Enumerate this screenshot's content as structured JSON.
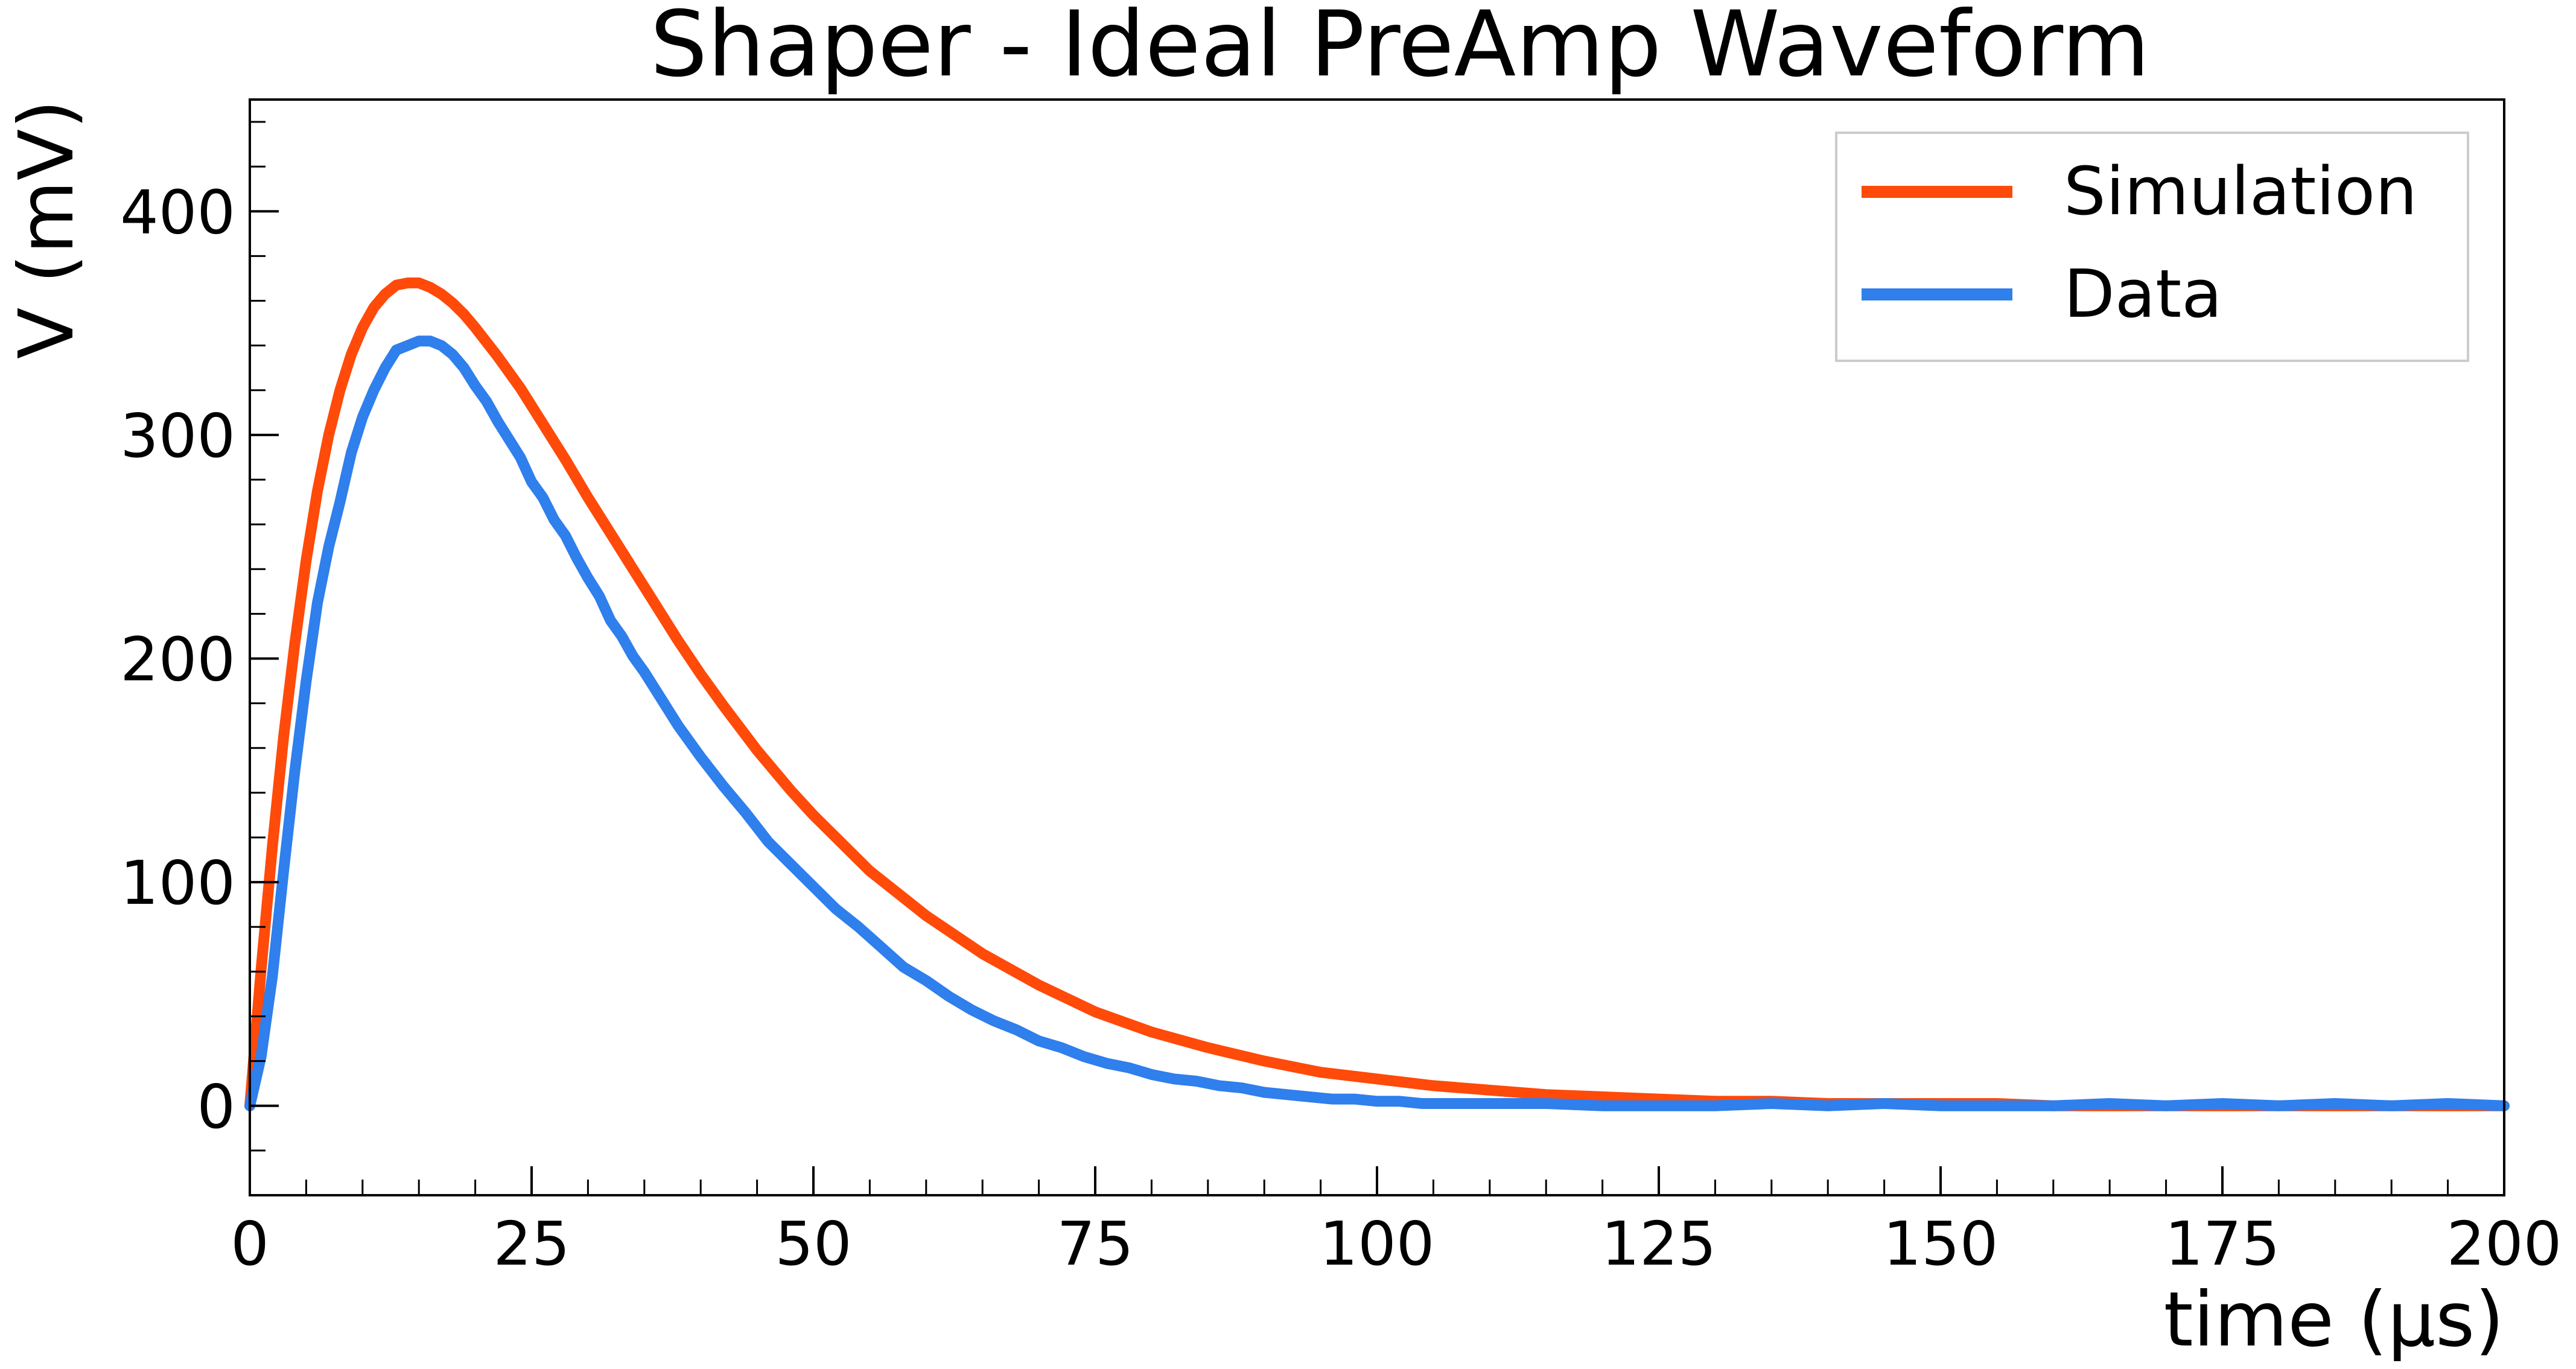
{
  "chart_data": {
    "type": "line",
    "title": "Shaper - Ideal PreAmp Waveform",
    "xlabel": "time (μs)",
    "ylabel": "V (mV)",
    "xlim": [
      0,
      200
    ],
    "ylim": [
      -40,
      450
    ],
    "xticks": [
      0,
      25,
      50,
      75,
      100,
      125,
      150,
      175,
      200
    ],
    "yticks": [
      0,
      100,
      200,
      300,
      400
    ],
    "grid": false,
    "legend_position": "top-right",
    "series": [
      {
        "name": "Simulation",
        "color": "#ff4a0a",
        "x": [
          0,
          1,
          2,
          3,
          4,
          5,
          6,
          7,
          8,
          9,
          10,
          11,
          12,
          13,
          14,
          15,
          16,
          17,
          18,
          19,
          20,
          22,
          24,
          26,
          28,
          30,
          32,
          34,
          36,
          38,
          40,
          42,
          45,
          48,
          50,
          55,
          60,
          65,
          70,
          75,
          80,
          85,
          90,
          95,
          100,
          105,
          110,
          115,
          120,
          125,
          130,
          135,
          140,
          145,
          150,
          155,
          160,
          165,
          170,
          175,
          180,
          185,
          190,
          195,
          200
        ],
        "y": [
          0,
          61,
          116,
          165,
          207,
          244,
          275,
          300,
          320,
          336,
          348,
          357,
          363,
          367,
          368,
          368,
          366,
          363,
          359,
          354,
          348,
          335,
          321,
          305,
          289,
          272,
          256,
          240,
          224,
          208,
          193,
          179,
          159,
          141,
          130,
          105,
          85,
          68,
          54,
          42,
          33,
          26,
          20,
          15,
          12,
          9,
          7,
          5,
          4,
          3,
          2,
          2,
          1,
          1,
          1,
          1,
          0,
          0,
          0,
          0,
          0,
          0,
          0,
          0,
          0
        ]
      },
      {
        "name": "Data",
        "color": "#2f7fec",
        "x": [
          0,
          1,
          2,
          3,
          4,
          5,
          6,
          7,
          8,
          9,
          10,
          11,
          12,
          13,
          14,
          15,
          16,
          17,
          18,
          19,
          20,
          21,
          22,
          23,
          24,
          25,
          26,
          27,
          28,
          29,
          30,
          31,
          32,
          33,
          34,
          35,
          36,
          38,
          40,
          42,
          44,
          46,
          48,
          50,
          52,
          54,
          56,
          58,
          60,
          62,
          64,
          66,
          68,
          70,
          72,
          74,
          76,
          78,
          80,
          82,
          84,
          86,
          88,
          90,
          92,
          94,
          96,
          98,
          100,
          102,
          104,
          106,
          108,
          110,
          115,
          120,
          125,
          130,
          135,
          140,
          145,
          150,
          155,
          160,
          165,
          170,
          175,
          180,
          185,
          190,
          195,
          200
        ],
        "y": [
          0,
          22,
          58,
          105,
          150,
          190,
          225,
          250,
          270,
          292,
          308,
          320,
          330,
          338,
          340,
          342,
          342,
          340,
          336,
          330,
          322,
          315,
          306,
          298,
          290,
          279,
          272,
          262,
          255,
          245,
          236,
          228,
          217,
          210,
          201,
          194,
          186,
          170,
          156,
          143,
          131,
          118,
          108,
          98,
          88,
          80,
          71,
          62,
          56,
          49,
          43,
          38,
          34,
          29,
          26,
          22,
          19,
          17,
          14,
          12,
          11,
          9,
          8,
          6,
          5,
          4,
          3,
          3,
          2,
          2,
          1,
          1,
          1,
          1,
          1,
          0,
          0,
          0,
          1,
          0,
          1,
          0,
          0,
          0,
          1,
          0,
          1,
          0,
          1,
          0,
          1,
          0
        ]
      }
    ]
  }
}
